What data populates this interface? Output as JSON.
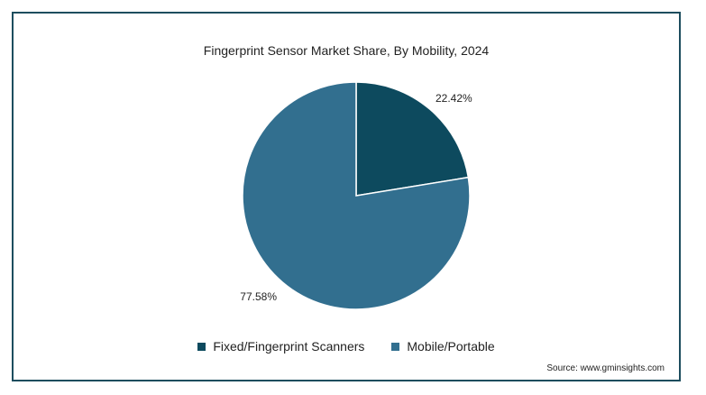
{
  "chart_data": {
    "type": "pie",
    "title": "Fingerprint Sensor Market Share, By Mobility, 2024",
    "categories": [
      "Fixed/Fingerprint Scanners",
      "Mobile/Portable"
    ],
    "values": [
      22.42,
      77.58
    ],
    "labels": [
      "22.42%",
      "77.58%"
    ],
    "colors": [
      "#0d4a5e",
      "#326f8f"
    ],
    "legend_position": "bottom"
  },
  "source": "Source: www.gminsights.com"
}
